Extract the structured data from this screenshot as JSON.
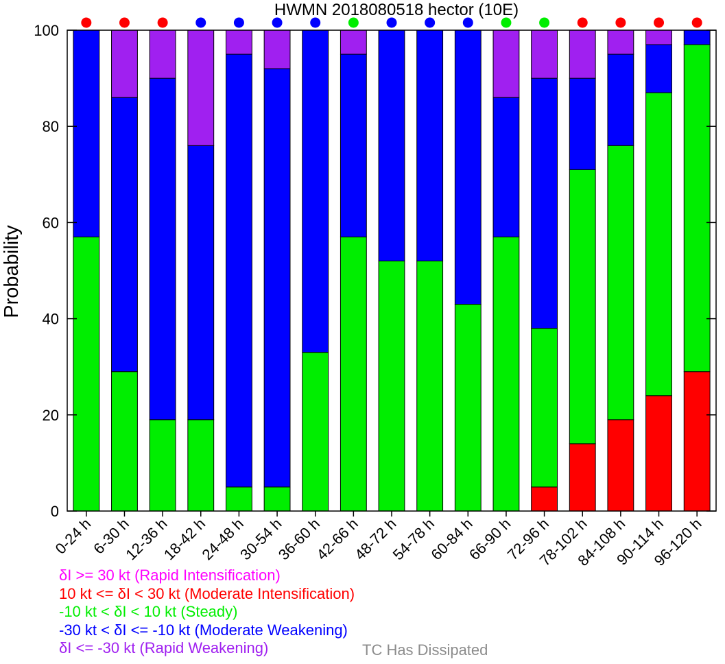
{
  "chart_data": {
    "type": "bar",
    "stacked": true,
    "title": "HWMN 2018080518 hector (10E)",
    "ylabel": "Probability",
    "xlabel": "",
    "ylim": [
      0,
      100
    ],
    "yticks": [
      0,
      20,
      40,
      60,
      80,
      100
    ],
    "grid": false,
    "categories": [
      "0-24 h",
      "6-30 h",
      "12-36 h",
      "18-42 h",
      "24-48 h",
      "30-54 h",
      "36-60 h",
      "42-66 h",
      "48-72 h",
      "54-78 h",
      "60-84 h",
      "66-90 h",
      "72-96 h",
      "78-102 h",
      "84-108 h",
      "90-114 h",
      "96-120 h"
    ],
    "series": [
      {
        "name": "Moderate Intensification",
        "color": "#ff0000",
        "values": [
          0,
          0,
          0,
          0,
          0,
          0,
          0,
          0,
          0,
          0,
          0,
          0,
          5,
          14,
          19,
          24,
          29
        ]
      },
      {
        "name": "Steady",
        "color": "#00ee00",
        "values": [
          57,
          29,
          19,
          19,
          5,
          5,
          33,
          57,
          52,
          52,
          43,
          57,
          33,
          57,
          57,
          63,
          68
        ]
      },
      {
        "name": "Moderate Weakening",
        "color": "#0000ff",
        "values": [
          43,
          57,
          71,
          57,
          90,
          87,
          67,
          38,
          48,
          48,
          57,
          29,
          52,
          19,
          19,
          10,
          3
        ]
      },
      {
        "name": "Rapid Weakening",
        "color": "#a020f0",
        "values": [
          0,
          14,
          10,
          24,
          5,
          8,
          0,
          5,
          0,
          0,
          0,
          14,
          10,
          10,
          5,
          3,
          0
        ]
      },
      {
        "name": "Rapid Intensification",
        "color": "#ff00ff",
        "values": [
          0,
          0,
          0,
          0,
          0,
          0,
          0,
          0,
          0,
          0,
          0,
          0,
          0,
          0,
          0,
          0,
          0
        ]
      }
    ],
    "top_markers": [
      "red",
      "red",
      "red",
      "blue",
      "blue",
      "blue",
      "blue",
      "green",
      "blue",
      "blue",
      "blue",
      "green",
      "green",
      "red",
      "red",
      "red",
      "red"
    ],
    "marker_colors": {
      "red": "#ff0000",
      "blue": "#0000ff",
      "green": "#00ee00"
    }
  },
  "legend": [
    {
      "text": "δI >= 30 kt (Rapid Intensification)",
      "color": "#ff00ff"
    },
    {
      "text": "10 kt <= δI < 30 kt (Moderate Intensification)",
      "color": "#ff0000"
    },
    {
      "text": "-10 kt < δI < 10 kt (Steady)",
      "color": "#00ee00"
    },
    {
      "text": "-30 kt < δI <= -10 kt (Moderate Weakening)",
      "color": "#0000ff"
    },
    {
      "text": "δI <= -30 kt (Rapid Weakening)",
      "color": "#a020f0"
    }
  ],
  "dissipated_label": "TC Has Dissipated"
}
